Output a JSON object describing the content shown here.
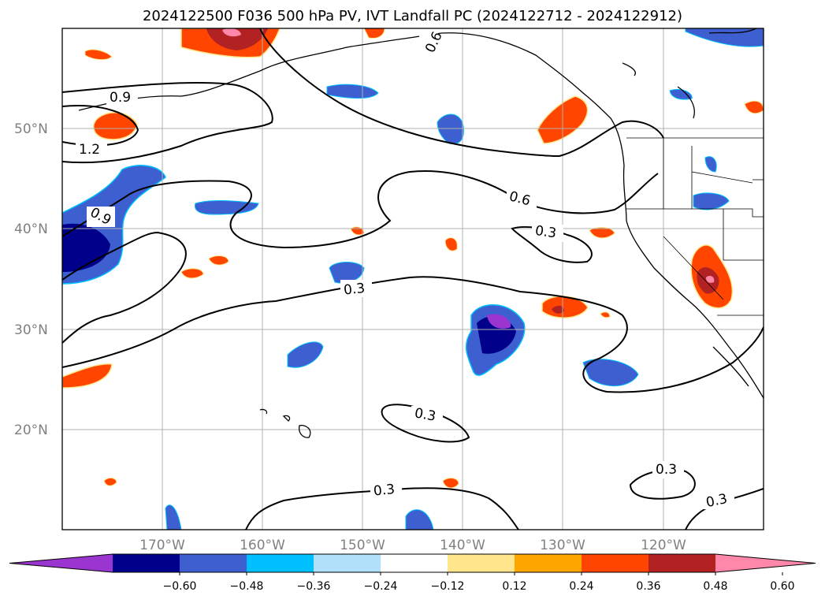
{
  "title": "2024122500 F036 500 hPa PV, IVT Landfall PC (2024122712 - 2024122912)",
  "lat_labels": [
    "50°N",
    "40°N",
    "30°N",
    "20°N"
  ],
  "lon_labels": [
    "170°W",
    "160°W",
    "150°W",
    "140°W",
    "130°W",
    "120°W"
  ],
  "contour_labels": [
    "0.6",
    "0.9",
    "1.2",
    "0.9",
    "0.6",
    "0.3",
    "0.3",
    "0.3",
    "0.3",
    "0.3",
    "0.3"
  ],
  "colorbar": {
    "ticks": [
      "−0.60",
      "−0.48",
      "−0.36",
      "−0.24",
      "−0.12",
      "0.12",
      "0.24",
      "0.36",
      "0.48",
      "0.60"
    ],
    "colors": [
      "#9a35d0",
      "#00008b",
      "#3e5fcf",
      "#00bfff",
      "#b0e0fa",
      "#ffffff",
      "#ffe68c",
      "#ffa500",
      "#ff4500",
      "#b22222",
      "#ff88aa"
    ]
  }
}
